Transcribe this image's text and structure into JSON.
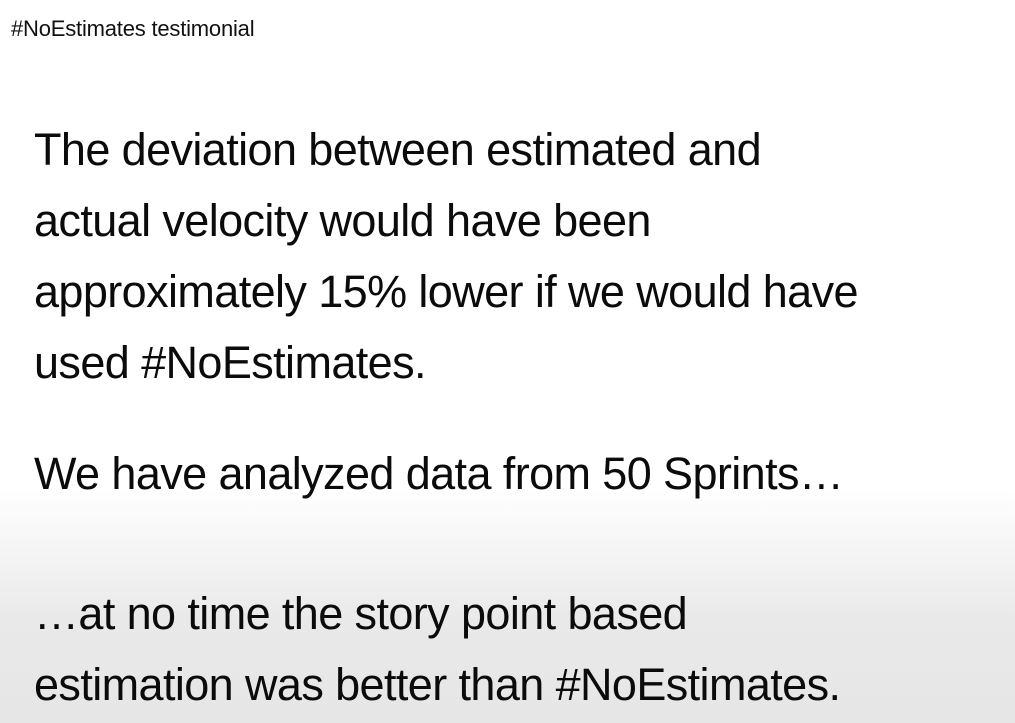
{
  "slide": {
    "title": "#NoEstimates testimonial",
    "paragraphs": [
      {
        "lines": [
          "The deviation between estimated and",
          "actual velocity would have been",
          "approximately 15% lower if we would have",
          "used #NoEstimates."
        ]
      },
      {
        "lines": [
          "We have analyzed data from 50 Sprints…"
        ]
      },
      {
        "lines": [
          "…at no time the story point based",
          "estimation was better than #NoEstimates."
        ]
      }
    ]
  }
}
